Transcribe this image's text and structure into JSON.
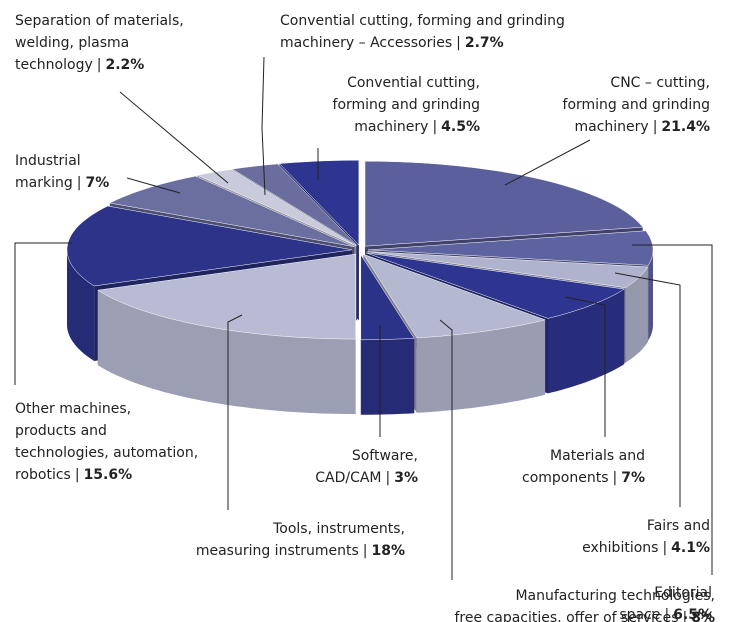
{
  "chart_data": {
    "type": "pie3d",
    "categories": [
      "CNC – cutting,\nforming and grinding\nmachinery",
      "Editorial\nspace",
      "Fairs and\nexhibitions",
      "Materials and\ncomponents",
      "Manufacturing technologies,\nfree capacities, offer of services",
      "Software,\nCAD/CAM",
      "Tools, instruments,\nmeasuring instruments",
      "Other machines,\nproducts and\ntechnologies, automation,\nrobotics",
      "Industrial\nmarking",
      "Separation of materials,\nwelding, plasma\ntechnology",
      "Convential cutting, forming and grinding\nmachinery – Accessories",
      "Convential cutting,\nforming and grinding\nmachinery"
    ],
    "values": [
      21.4,
      6.5,
      4.1,
      7,
      8,
      3,
      18,
      15.6,
      7,
      2.2,
      2.7,
      4.5
    ],
    "value_labels": [
      "21.4%",
      "6.5%",
      "4.1%",
      "7%",
      "8%",
      "3%",
      "18%",
      "15.6%",
      "7%",
      "2.2%",
      "2.7%",
      "4.5%"
    ],
    "separator": "|",
    "colors": [
      "#5b5f9b",
      "#5d62a0",
      "#b0b3cd",
      "#2e3590",
      "#b5b8d1",
      "#2b3388",
      "#b8bbd3",
      "#2c3388",
      "#6b6fa0",
      "#c9cbdc",
      "#6a6d9e",
      "#2e3590"
    ]
  }
}
